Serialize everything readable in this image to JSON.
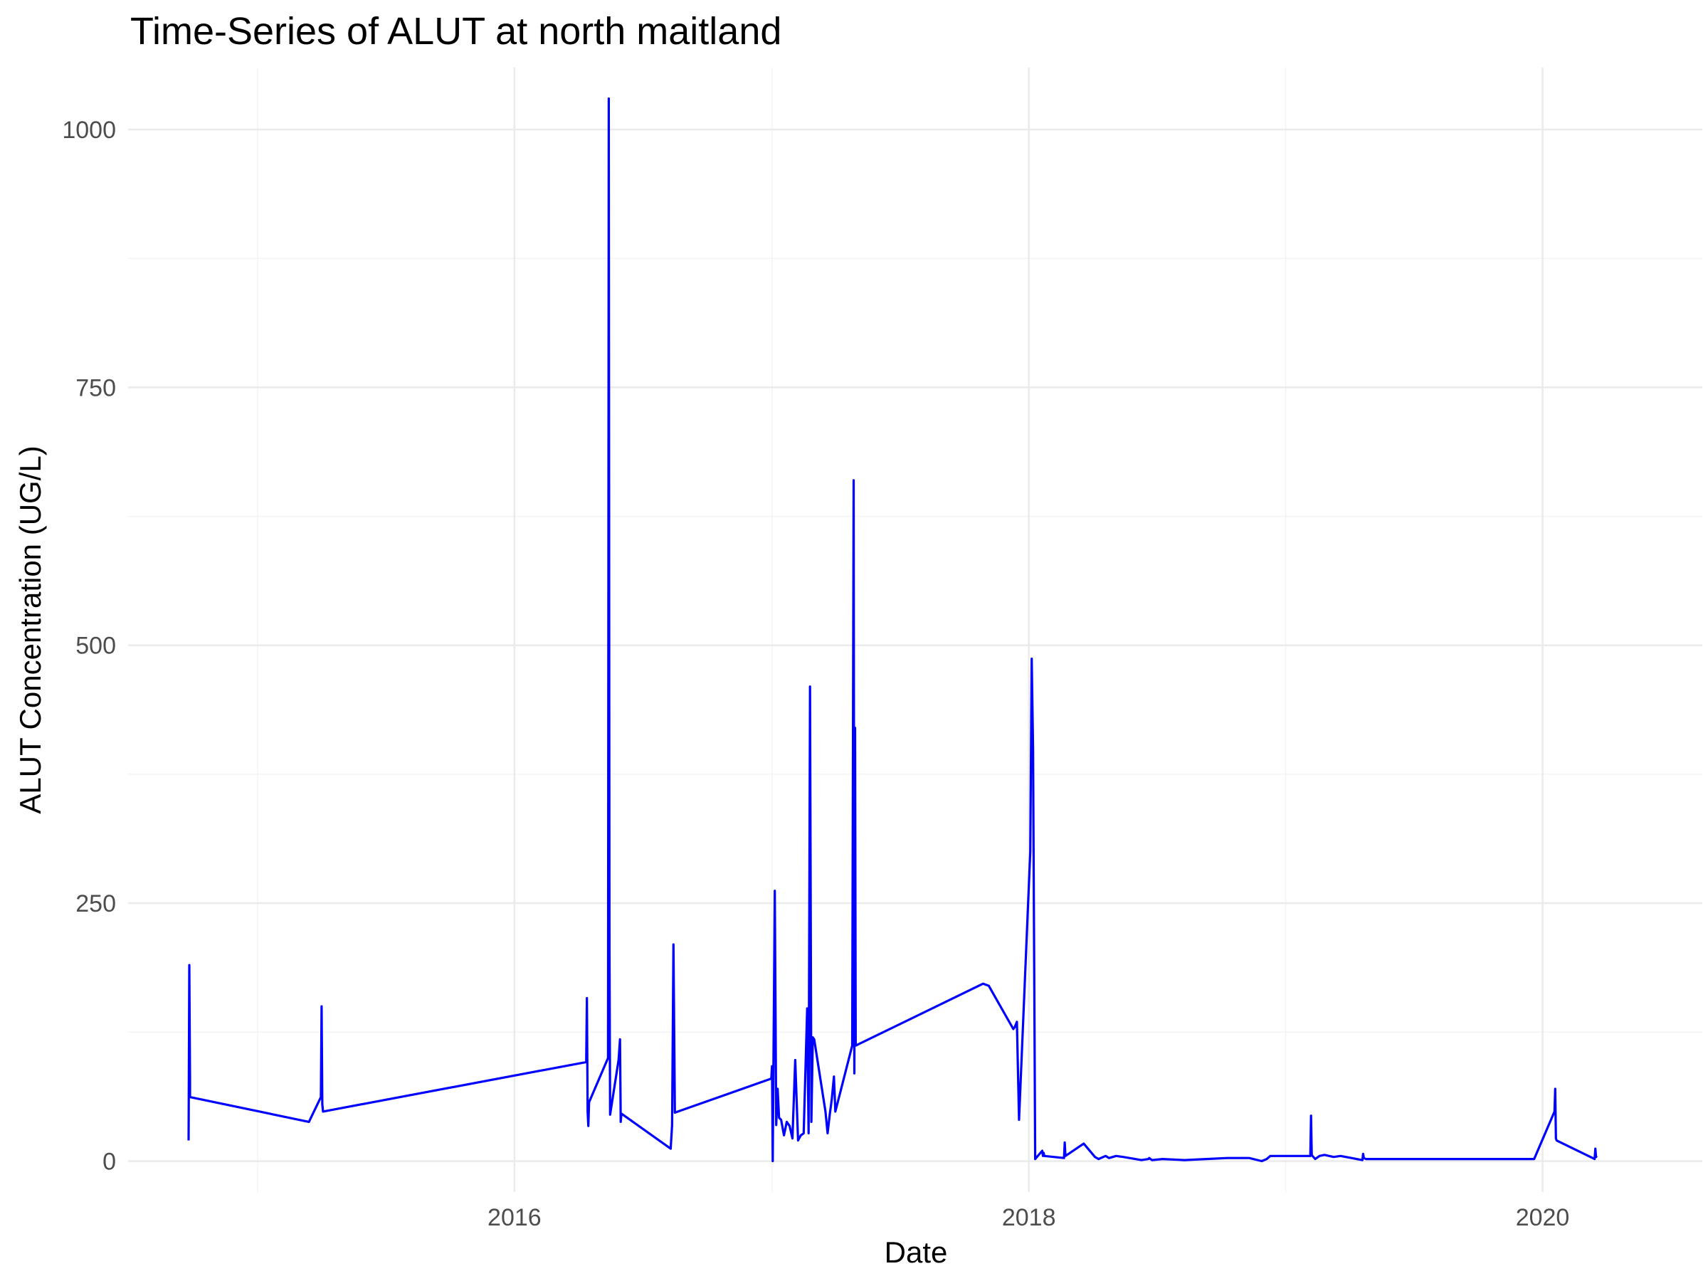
{
  "chart_data": {
    "type": "line",
    "title": "Time-Series of ALUT at north maitland",
    "xlabel": "Date",
    "ylabel": "ALUT Concentration (UG/L)",
    "x_axis_type": "date",
    "xlim": [
      "2014-07-01",
      "2020-08-15"
    ],
    "ylim": [
      -30,
      1060
    ],
    "x_ticks": [
      {
        "value": "2016-01-01",
        "label": "2016"
      },
      {
        "value": "2018-01-01",
        "label": "2018"
      },
      {
        "value": "2020-01-01",
        "label": "2020"
      }
    ],
    "x_minor_ticks": [
      "2015-01-01",
      "2017-01-01",
      "2019-01-01"
    ],
    "y_ticks": [
      {
        "value": 0,
        "label": "0"
      },
      {
        "value": 250,
        "label": "250"
      },
      {
        "value": 500,
        "label": "500"
      },
      {
        "value": 750,
        "label": "750"
      },
      {
        "value": 1000,
        "label": "1000"
      }
    ],
    "y_minor_ticks": [
      125,
      375,
      625,
      875
    ],
    "grid": true,
    "legend": "none",
    "colors": {
      "series": "#0000ff",
      "grid_major": "#ebebeb",
      "grid_minor": "#f3f3f3"
    },
    "series": [
      {
        "x": [
          "2014-09-25",
          "2014-09-26",
          "2014-09-27",
          "2014-09-27",
          "2015-03-15",
          "2015-04-01",
          "2015-04-02",
          "2015-04-03",
          "2015-04-04",
          "2016-04-12",
          "2016-04-13",
          "2016-04-14",
          "2016-04-15",
          "2016-04-16",
          "2016-05-13",
          "2016-05-14",
          "2016-05-15",
          "2016-05-16",
          "2016-05-28",
          "2016-05-30",
          "2016-05-31",
          "2016-06-01",
          "2016-08-10",
          "2016-08-12",
          "2016-08-14",
          "2016-08-16",
          "2016-12-31",
          "2017-01-01",
          "2017-01-02",
          "2017-01-03",
          "2017-01-05",
          "2017-01-07",
          "2017-01-09",
          "2017-01-11",
          "2017-01-14",
          "2017-01-18",
          "2017-01-22",
          "2017-01-26",
          "2017-01-30",
          "2017-02-03",
          "2017-02-07",
          "2017-02-11",
          "2017-02-15",
          "2017-02-20",
          "2017-02-22",
          "2017-02-24",
          "2017-02-26",
          "2017-02-28",
          "2017-03-02",
          "2017-03-18",
          "2017-03-21",
          "2017-03-24",
          "2017-03-27",
          "2017-03-30",
          "2017-04-01",
          "2017-04-25",
          "2017-04-27",
          "2017-04-28",
          "2017-04-29",
          "2017-04-30",
          "2017-10-28",
          "2017-11-05",
          "2017-12-10",
          "2017-12-12",
          "2017-12-15",
          "2017-12-18",
          "2018-01-03",
          "2018-01-05",
          "2018-01-07",
          "2018-01-10",
          "2018-01-20",
          "2018-01-21",
          "2018-01-22",
          "2018-01-23",
          "2018-02-20",
          "2018-02-21",
          "2018-02-22",
          "2018-03-20",
          "2018-04-05",
          "2018-04-10",
          "2018-04-20",
          "2018-04-25",
          "2018-05-05",
          "2018-05-15",
          "2018-06-10",
          "2018-06-20",
          "2018-06-21",
          "2018-06-25",
          "2018-07-10",
          "2018-08-10",
          "2018-09-10",
          "2018-10-10",
          "2018-11-10",
          "2018-11-28",
          "2018-12-05",
          "2018-12-10",
          "2019-02-05",
          "2019-02-06",
          "2019-02-07",
          "2019-02-08",
          "2019-02-12",
          "2019-02-18",
          "2019-02-25",
          "2019-03-10",
          "2019-03-20",
          "2019-04-20",
          "2019-04-21",
          "2019-04-22",
          "2019-04-25",
          "2019-06-20",
          "2019-08-20",
          "2019-09-20",
          "2019-11-20",
          "2019-11-25",
          "2019-12-20",
          "2020-01-18",
          "2020-01-19",
          "2020-01-20",
          "2020-01-21",
          "2020-03-15",
          "2020-03-16",
          "2020-03-17",
          "2020-03-18"
        ],
        "y": [
          20,
          190,
          80,
          62,
          38,
          62,
          150,
          55,
          48,
          96,
          158,
          48,
          34,
          57,
          100,
          1030,
          210,
          45,
          98,
          118,
          38,
          46,
          12,
          35,
          210,
          47,
          80,
          92,
          0,
          90,
          262,
          35,
          70,
          42,
          40,
          25,
          38,
          34,
          22,
          98,
          20,
          25,
          27,
          148,
          27,
          460,
          38,
          120,
          118,
          48,
          27,
          45,
          60,
          82,
          48,
          112,
          660,
          85,
          420,
          112,
          172,
          170,
          128,
          130,
          135,
          40,
          300,
          487,
          400,
          2,
          10,
          5,
          8,
          5,
          3,
          18,
          5,
          17,
          4,
          2,
          5,
          3,
          5,
          4,
          1,
          2,
          3,
          1,
          2,
          1,
          2,
          3,
          3,
          0,
          2,
          5,
          5,
          44,
          6,
          5,
          2,
          5,
          6,
          4,
          5,
          1,
          7,
          3,
          2,
          2,
          2,
          2,
          2,
          2,
          2,
          48,
          70,
          22,
          20,
          2,
          12,
          4,
          5
        ]
      }
    ]
  }
}
